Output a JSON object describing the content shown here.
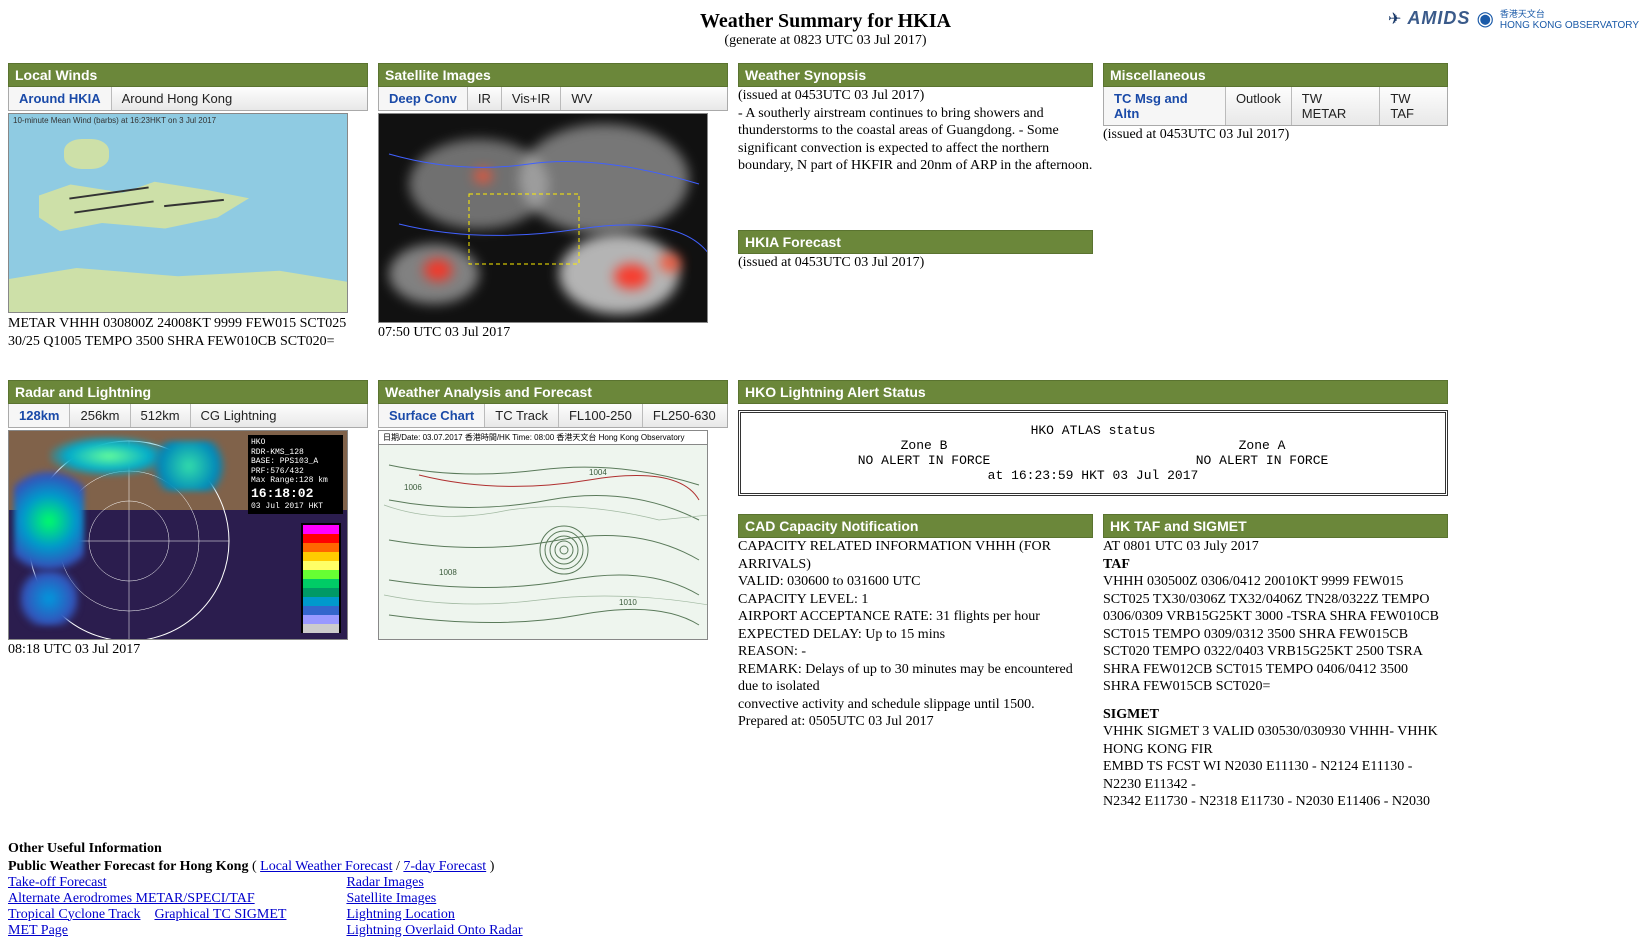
{
  "header": {
    "title": "Weather Summary for HKIA",
    "subtitle": "(generate at 0823 UTC 03 Jul 2017)",
    "logo_amids": "AMIDS",
    "logo_hko_cn": "香港天文台",
    "logo_hko_en": "HONG KONG OBSERVATORY"
  },
  "local_winds": {
    "title": "Local Winds",
    "tabs": [
      "Around HKIA",
      "Around Hong Kong"
    ],
    "active_tab": 0,
    "map_legend": "10-minute Mean Wind (barbs) at 16:23HKT on 3 Jul 2017",
    "metar": "METAR VHHH 030800Z 24008KT 9999 FEW015 SCT025 30/25 Q1005 TEMPO 3500 SHRA FEW010CB SCT020="
  },
  "satellite": {
    "title": "Satellite Images",
    "tabs": [
      "Deep Conv",
      "IR",
      "Vis+IR",
      "WV"
    ],
    "active_tab": 0,
    "caption": "07:50 UTC 03 Jul 2017"
  },
  "synopsis": {
    "title": "Weather Synopsis",
    "issued": "(issued at 0453UTC 03 Jul 2017)",
    "text": "- A southerly airstream continues to bring showers and thunderstorms to the coastal areas of Guangdong. - Some significant convection is expected to affect the northern boundary, N part of HKFIR and 20nm of ARP in the afternoon."
  },
  "forecast": {
    "title": "HKIA Forecast",
    "issued": "(issued at 0453UTC 03 Jul 2017)"
  },
  "misc": {
    "title": "Miscellaneous",
    "tabs": [
      "TC Msg and Altn",
      "Outlook",
      "TW METAR",
      "TW TAF"
    ],
    "active_tab": 0,
    "issued": "(issued at 0453UTC 03 Jul 2017)"
  },
  "radar": {
    "title": "Radar and Lightning",
    "tabs": [
      "128km",
      "256km",
      "512km",
      "CG Lightning"
    ],
    "active_tab": 0,
    "caption": "08:18 UTC 03 Jul 2017",
    "info_lines": [
      "HKO",
      "RDR-KMS_128",
      "BASE: PPS103_A",
      "PRF:576/432",
      "Max Range:128 km"
    ],
    "info_time": "16:18:02",
    "info_date": "03 Jul 2017 HKT",
    "scale_colors": [
      "#ff00ff",
      "#ff0000",
      "#ff6600",
      "#ffcc00",
      "#ffff66",
      "#66ff33",
      "#00cc66",
      "#009966",
      "#0099cc",
      "#3366cc",
      "#9999ff",
      "#cccccc"
    ]
  },
  "analysis": {
    "title": "Weather Analysis and Forecast",
    "tabs": [
      "Surface Chart",
      "TC Track",
      "FL100-250",
      "FL250-630"
    ],
    "active_tab": 0,
    "chart_header": "日期/Date: 03.07.2017   香港時間/HK Time: 08:00   香港天文台 Hong Kong Observatory"
  },
  "lightning_alert": {
    "title": "HKO Lightning Alert Status",
    "atlas_title": "HKO ATLAS status",
    "zone_b": "Zone B",
    "zone_a": "Zone A",
    "alert_b": "NO ALERT IN FORCE",
    "alert_a": "NO ALERT IN FORCE",
    "timestamp": "at 16:23:59 HKT 03 Jul 2017"
  },
  "cad": {
    "title": "CAD Capacity Notification",
    "lines": [
      "CAPACITY RELATED INFORMATION VHHH (FOR ARRIVALS)",
      "VALID: 030600 to 031600 UTC",
      "CAPACITY LEVEL: 1",
      "AIRPORT ACCEPTANCE RATE: 31 flights per hour",
      "EXPECTED DELAY: Up to 15 mins",
      "REASON: -",
      "REMARK: Delays of up to 30 minutes may be encountered due to isolated",
      "convective activity and schedule slippage until 1500.",
      "Prepared at: 0505UTC 03 Jul 2017"
    ]
  },
  "taf": {
    "title": "HK TAF and SIGMET",
    "at_line": "AT 0801 UTC 03 July 2017",
    "taf_heading": "TAF",
    "taf_text": "VHHH 030500Z 0306/0412 20010KT 9999 FEW015 SCT025 TX30/0306Z TX32/0406Z TN28/0322Z TEMPO 0306/0309 VRB15G25KT 3000 -TSRA SHRA FEW010CB SCT015 TEMPO 0309/0312 3500 SHRA FEW015CB SCT020 TEMPO 0322/0403 VRB15G25KT 2500 TSRA SHRA FEW012CB SCT015 TEMPO 0406/0412 3500 SHRA FEW015CB SCT020=",
    "sigmet_heading": "SIGMET",
    "sigmet_text": "VHHK SIGMET 3 VALID 030530/030930 VHHH- VHHK HONG KONG FIR\nEMBD TS FCST WI N2030 E11130 - N2124 E11130 - N2230 E11342 -\nN2342 E11730 - N2318 E11730 - N2030 E11406 - N2030"
  },
  "useful": {
    "title": "Other Useful Information",
    "pub_line": "Public Weather Forecast for Hong Kong",
    "pub_links": [
      "Local Weather Forecast",
      "7-day Forecast"
    ],
    "col1": [
      "Take-off Forecast",
      "Alternate Aerodromes METAR/SPECI/TAF",
      "Tropical Cyclone Track",
      "MET Page"
    ],
    "col1_extra": "Graphical TC SIGMET",
    "col2": [
      "Radar Images",
      "Satellite Images",
      "Lightning Location",
      "Lightning Overlaid Onto Radar"
    ]
  }
}
